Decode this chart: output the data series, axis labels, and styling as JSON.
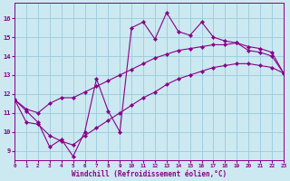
{
  "xlabel": "Windchill (Refroidissement éolien,°C)",
  "bg_color": "#cce8f0",
  "line_color": "#880088",
  "grid_color": "#99ccdd",
  "xlim": [
    0,
    23
  ],
  "ylim": [
    8.5,
    16.8
  ],
  "yticks": [
    9,
    10,
    11,
    12,
    13,
    14,
    15,
    16
  ],
  "xticks": [
    0,
    1,
    2,
    3,
    4,
    5,
    6,
    7,
    8,
    9,
    10,
    11,
    12,
    13,
    14,
    15,
    16,
    17,
    18,
    19,
    20,
    21,
    22,
    23
  ],
  "line1_x": [
    0,
    1,
    2,
    3,
    4,
    5,
    6,
    7,
    8,
    9,
    10,
    11,
    12,
    13,
    14,
    15,
    16,
    17,
    18,
    19,
    20,
    21,
    22,
    23
  ],
  "line1_y": [
    11.7,
    11.1,
    10.5,
    9.2,
    9.6,
    8.7,
    10.0,
    12.8,
    11.1,
    10.0,
    15.5,
    15.8,
    14.9,
    16.3,
    15.3,
    15.1,
    15.8,
    15.0,
    14.8,
    14.7,
    14.3,
    14.2,
    14.0,
    13.1
  ],
  "line2_x": [
    0,
    1,
    2,
    3,
    4,
    5,
    6,
    7,
    8,
    9,
    10,
    11,
    12,
    13,
    14,
    15,
    16,
    17,
    18,
    19,
    20,
    21,
    22,
    23
  ],
  "line2_y": [
    11.7,
    11.2,
    11.0,
    11.5,
    11.8,
    11.8,
    12.1,
    12.4,
    12.7,
    13.0,
    13.3,
    13.6,
    13.9,
    14.1,
    14.3,
    14.4,
    14.5,
    14.6,
    14.6,
    14.7,
    14.5,
    14.4,
    14.2,
    13.1
  ],
  "line3_x": [
    0,
    1,
    2,
    3,
    4,
    5,
    6,
    7,
    8,
    9,
    10,
    11,
    12,
    13,
    14,
    15,
    16,
    17,
    18,
    19,
    20,
    21,
    22,
    23
  ],
  "line3_y": [
    11.7,
    10.5,
    10.4,
    9.8,
    9.5,
    9.3,
    9.8,
    10.2,
    10.6,
    11.0,
    11.4,
    11.8,
    12.1,
    12.5,
    12.8,
    13.0,
    13.2,
    13.4,
    13.5,
    13.6,
    13.6,
    13.5,
    13.4,
    13.1
  ]
}
